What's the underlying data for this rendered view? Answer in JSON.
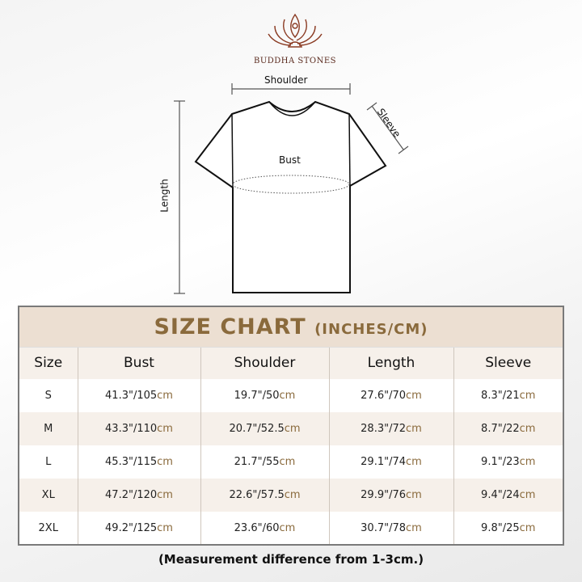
{
  "brand": {
    "name": "BUDDHA STONES",
    "logo_color": "#8a3a22"
  },
  "diagram": {
    "shoulder": "Shoulder",
    "sleeve": "Sleeve",
    "bust": "Bust",
    "length": "Length"
  },
  "chart": {
    "title": "SIZE CHART",
    "unit": "(INCHES/CM)",
    "accent": "#8a6a3c",
    "headers": [
      "Size",
      "Bust",
      "Shoulder",
      "Length",
      "Sleeve"
    ],
    "rows": [
      {
        "size": "S",
        "values": [
          [
            "41.3\"/105",
            "cm"
          ],
          [
            "19.7\"/50",
            "cm"
          ],
          [
            "27.6\"/70",
            "cm"
          ],
          [
            "8.3\"/21",
            "cm"
          ]
        ]
      },
      {
        "size": "M",
        "values": [
          [
            "43.3\"/110",
            "cm"
          ],
          [
            "20.7\"/52.5",
            "cm"
          ],
          [
            "28.3\"/72",
            "cm"
          ],
          [
            "8.7\"/22",
            "cm"
          ]
        ]
      },
      {
        "size": "L",
        "values": [
          [
            "45.3\"/115",
            "cm"
          ],
          [
            "21.7\"/55",
            "cm"
          ],
          [
            "29.1\"/74",
            "cm"
          ],
          [
            "9.1\"/23",
            "cm"
          ]
        ]
      },
      {
        "size": "XL",
        "values": [
          [
            "47.2\"/120",
            "cm"
          ],
          [
            "22.6\"/57.5",
            "cm"
          ],
          [
            "29.9\"/76",
            "cm"
          ],
          [
            "9.4\"/24",
            "cm"
          ]
        ]
      },
      {
        "size": "2XL",
        "values": [
          [
            "49.2\"/125",
            "cm"
          ],
          [
            "23.6\"/60",
            "cm"
          ],
          [
            "30.7\"/78",
            "cm"
          ],
          [
            "9.8\"/25",
            "cm"
          ]
        ]
      }
    ]
  },
  "note": "(Measurement difference from 1-3cm.)"
}
